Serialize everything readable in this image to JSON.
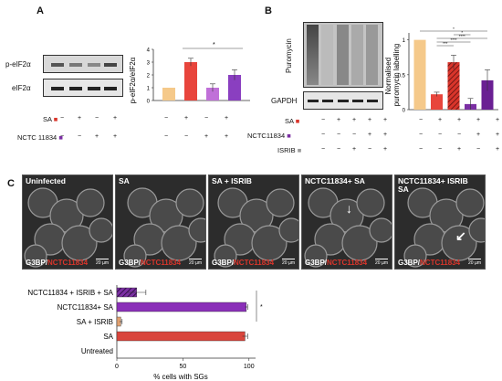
{
  "panelA": {
    "letter": "A",
    "blot_labels": [
      "p-eIF2α",
      "eIF2α"
    ],
    "treatment_rows": [
      {
        "label": "SA",
        "color": "#d9352b",
        "symbols": [
          "−",
          "+",
          "−",
          "+"
        ],
        "chart_symbols": [
          "−",
          "+",
          "−",
          "+"
        ]
      },
      {
        "label": "NCTC 11834",
        "color": "#7b2fa3",
        "symbols": [
          "−",
          "−",
          "+",
          "+"
        ],
        "chart_symbols": [
          "−",
          "−",
          "+",
          "+"
        ]
      }
    ],
    "significance": "*"
  },
  "panelB": {
    "letter": "B",
    "blot_labels": [
      "Puromycin",
      "GAPDH"
    ],
    "treatment_rows": [
      {
        "label": "SA",
        "color": "#d9352b",
        "symbols": [
          "−",
          "+",
          "+",
          "+",
          "+"
        ],
        "chart_symbols": [
          "−",
          "+",
          "+",
          "+",
          "+"
        ]
      },
      {
        "label": "NCTC11834",
        "color": "#7b2fa3",
        "symbols": [
          "−",
          "−",
          "−",
          "+",
          "+"
        ],
        "chart_symbols": [
          "−",
          "−",
          "−",
          "+",
          "+"
        ]
      },
      {
        "label": "ISRIB",
        "color": "#999999",
        "symbols": [
          "−",
          "−",
          "+",
          "−",
          "+"
        ],
        "chart_symbols": [
          "−",
          "−",
          "+",
          "−",
          "+"
        ]
      }
    ],
    "significance": [
      "***",
      "****",
      "****",
      "*",
      "*"
    ]
  },
  "panelC": {
    "letter": "C",
    "images": [
      {
        "title": "Uninfected",
        "scale": "20 µm"
      },
      {
        "title": "SA",
        "scale": "20 µm"
      },
      {
        "title": "SA + ISRIB",
        "scale": "20 µm"
      },
      {
        "title": "NCTC11834+ SA",
        "scale": "20 µm"
      },
      {
        "title": "NCTC11834+ ISRIB\nSA",
        "scale": "20 µm"
      }
    ],
    "foot_prefix": "G3BP/",
    "foot_red": "NCTC11834",
    "significance": "*"
  },
  "chart_data": [
    {
      "type": "bar",
      "categories": [
        "1",
        "2",
        "3",
        "4"
      ],
      "values": [
        1.0,
        3.0,
        1.0,
        2.0
      ],
      "errors": [
        0.0,
        0.3,
        0.3,
        0.4
      ],
      "colors": [
        "#f5c98a",
        "#e8453c",
        "#c070d8",
        "#8a3fc0"
      ],
      "ylabel": "p-eIF2α/eIF2α",
      "yticks": [
        0,
        1,
        2,
        3,
        4
      ],
      "ylim": [
        0,
        4
      ]
    },
    {
      "type": "bar",
      "categories": [
        "1",
        "2",
        "3",
        "4",
        "5"
      ],
      "values": [
        1.0,
        0.22,
        0.68,
        0.08,
        0.42
      ],
      "errors": [
        0.0,
        0.03,
        0.1,
        0.08,
        0.15
      ],
      "colors": [
        "#f5c98a",
        "#e8453c",
        "#d9352b",
        "#7b2fa3",
        "#6a1f93"
      ],
      "patterns": [
        "solid",
        "solid",
        "hatch",
        "solid",
        "solid"
      ],
      "ylabel": "Normalised puromycin labelling",
      "yticks": [
        0,
        0.5,
        1
      ],
      "ylim": [
        0,
        1.1
      ]
    },
    {
      "type": "bar",
      "orientation": "horizontal",
      "categories": [
        "NCTC11834 + ISRIB + SA",
        "NCTC11834+ SA",
        "SA + ISRIB",
        "SA",
        "Untreated"
      ],
      "values": [
        15,
        98,
        3,
        97,
        0
      ],
      "errors": [
        7,
        1,
        1,
        2,
        0
      ],
      "colors": [
        "#5a2a80",
        "#8a2fb8",
        "#e0a070",
        "#d9453c",
        "#ffffff"
      ],
      "patterns": [
        "hatch",
        "solid",
        "solid",
        "solid",
        "solid"
      ],
      "xlabel": "% cells with SGs",
      "xticks": [
        0,
        50,
        100
      ],
      "xlim": [
        0,
        105
      ]
    }
  ]
}
